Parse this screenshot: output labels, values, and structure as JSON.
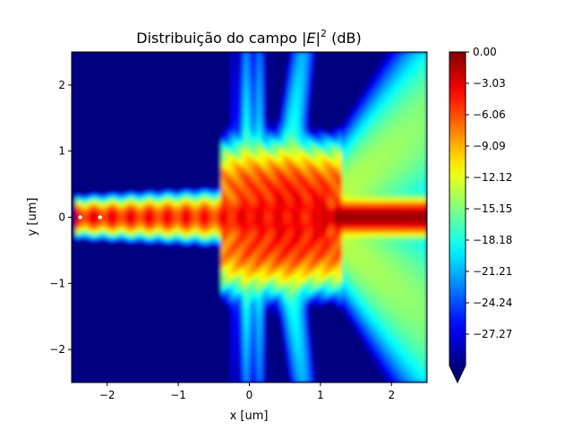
{
  "chart_data": {
    "type": "heatmap",
    "title_prefix": "Distribuição do campo ",
    "title_math": "|E|",
    "title_sup": "2",
    "title_suffix": " (dB)",
    "xlabel": "x [um]",
    "ylabel": "y [um]",
    "xlim": [
      -2.5,
      2.5
    ],
    "ylim": [
      -2.5,
      2.5
    ],
    "x_ticks": [
      -2,
      -1,
      0,
      1,
      2
    ],
    "x_tick_labels": [
      "−2",
      "−1",
      "0",
      "1",
      "2"
    ],
    "y_ticks": [
      -2,
      -1,
      0,
      1,
      2
    ],
    "y_tick_labels": [
      "−2",
      "−1",
      "0",
      "1",
      "2"
    ],
    "grid": false,
    "colormap": "jet",
    "colorbar": {
      "min": -30.3,
      "max": 0.0,
      "extend": "min",
      "ticks": [
        0.0,
        -3.03,
        -6.06,
        -9.09,
        -12.12,
        -15.15,
        -18.18,
        -21.21,
        -24.24,
        -27.27
      ],
      "tick_labels": [
        "0.00",
        "−3.03",
        "−6.06",
        "−9.09",
        "−12.12",
        "−15.15",
        "−18.18",
        "−21.21",
        "−24.24",
        "−27.27"
      ]
    },
    "source_x": -2.45,
    "source_y": 0.0,
    "beam_waist": 0.28,
    "focus_x": 0.7,
    "standing_wave_period": 0.26,
    "lobe_angle_deg": 82,
    "background_db": -30.3
  }
}
